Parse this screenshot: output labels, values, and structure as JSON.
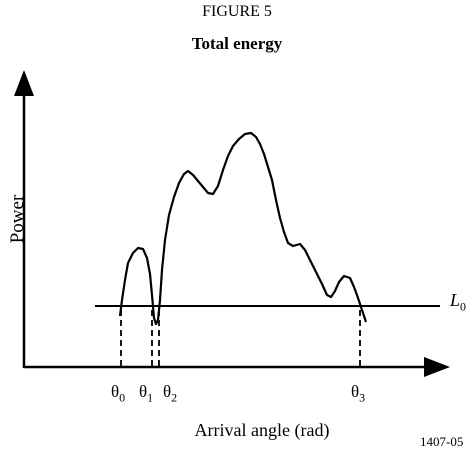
{
  "figure": {
    "number": "FIGURE 5",
    "title": "Total energy",
    "ref_code": "1407-05"
  },
  "axes": {
    "ylabel": "Power",
    "xlabel": "Arrival angle (rad)"
  },
  "threshold": {
    "symbol": "L",
    "subscript": "0"
  },
  "angles": [
    {
      "symbol": "θ",
      "subscript": "0"
    },
    {
      "symbol": "θ",
      "subscript": "1"
    },
    {
      "symbol": "θ",
      "subscript": "2"
    },
    {
      "symbol": "θ",
      "subscript": "3"
    }
  ],
  "colors": {
    "ink": "#000000",
    "background": "#ffffff"
  }
}
